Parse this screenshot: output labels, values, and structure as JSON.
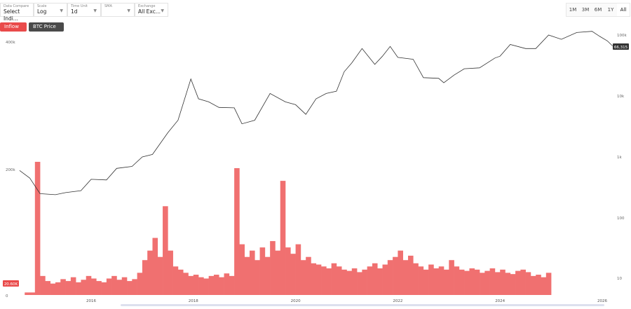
{
  "controls": [
    {
      "label": "Data Compare",
      "value": "Select Indi..."
    },
    {
      "label": "Scale",
      "value": "Log"
    },
    {
      "label": "Time Unit",
      "value": "1d"
    },
    {
      "label": "SMA",
      "value": ""
    },
    {
      "label": "Exchange",
      "value": "All Exc..."
    }
  ],
  "pills": [
    {
      "label": "Inflow ×",
      "color": "#e94a4a"
    },
    {
      "label": "BTC Price ×",
      "color": "#4a4a4a"
    }
  ],
  "ranges": [
    "1M",
    "3M",
    "6M",
    "1Y",
    "All"
  ],
  "active_range": "All",
  "chart_data": {
    "type": "bar+line",
    "x_ticks": [
      "2016",
      "2018",
      "2020",
      "2022",
      "2024",
      "2026"
    ],
    "left_axis": {
      "ticks": [
        "0",
        "200k",
        "400k"
      ],
      "range": [
        0,
        400000
      ]
    },
    "right_axis": {
      "scale": "log",
      "ticks": [
        "10",
        "100",
        "1k",
        "10k",
        "100k"
      ],
      "range": [
        1,
        200000
      ]
    },
    "inflow_marker": "20.60K",
    "price_marker": "66,315",
    "colors": {
      "inflow": "#f07070",
      "price": "#333333"
    },
    "series": [
      {
        "name": "BTC Price",
        "type": "line",
        "x": [
          2014.6,
          2014.8,
          2015.0,
          2015.3,
          2015.5,
          2015.8,
          2016.0,
          2016.3,
          2016.5,
          2016.8,
          2017.0,
          2017.2,
          2017.5,
          2017.7,
          2017.95,
          2018.1,
          2018.3,
          2018.5,
          2018.8,
          2018.95,
          2019.2,
          2019.5,
          2019.8,
          2020.0,
          2020.2,
          2020.4,
          2020.6,
          2020.8,
          2020.95,
          2021.1,
          2021.3,
          2021.55,
          2021.7,
          2021.85,
          2022.0,
          2022.3,
          2022.5,
          2022.8,
          2022.9,
          2023.1,
          2023.3,
          2023.6,
          2023.9,
          2024.0,
          2024.2,
          2024.5,
          2024.7,
          2024.95,
          2025.2,
          2025.5,
          2025.8,
          2025.95,
          2026.1,
          2026.2
        ],
        "y": [
          600,
          450,
          250,
          240,
          260,
          280,
          430,
          420,
          650,
          700,
          1000,
          1100,
          2500,
          4000,
          19000,
          9000,
          8000,
          6500,
          6400,
          3500,
          4000,
          11000,
          8000,
          7200,
          5000,
          9000,
          11000,
          12000,
          25000,
          35000,
          60000,
          33000,
          45000,
          65000,
          43000,
          40000,
          20000,
          19500,
          16500,
          22000,
          28000,
          29000,
          42000,
          45000,
          70000,
          60000,
          60000,
          100000,
          85000,
          110000,
          115000,
          95000,
          80000,
          66315
        ]
      },
      {
        "name": "Inflow",
        "type": "bar",
        "x_start": 2014.7,
        "x_step": 0.1,
        "values": [
          4,
          4,
          210,
          30,
          22,
          18,
          20,
          25,
          22,
          28,
          20,
          24,
          30,
          26,
          22,
          20,
          26,
          30,
          24,
          28,
          22,
          25,
          35,
          55,
          70,
          90,
          60,
          140,
          70,
          45,
          40,
          35,
          30,
          32,
          28,
          26,
          30,
          32,
          28,
          34,
          30,
          200,
          80,
          60,
          70,
          55,
          75,
          60,
          85,
          70,
          180,
          75,
          65,
          80,
          55,
          60,
          50,
          48,
          45,
          42,
          50,
          45,
          40,
          38,
          42,
          36,
          40,
          45,
          50,
          42,
          48,
          55,
          60,
          70,
          55,
          62,
          50,
          45,
          40,
          48,
          42,
          45,
          40,
          55,
          45,
          40,
          38,
          42,
          40,
          35,
          38,
          42,
          36,
          40,
          35,
          33,
          38,
          40,
          36,
          30,
          32,
          28,
          35
        ]
      }
    ]
  }
}
